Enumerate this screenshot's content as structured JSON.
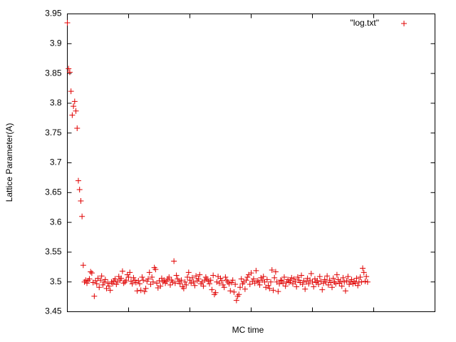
{
  "chart_data": {
    "type": "scatter",
    "x_label": "MC time",
    "y_label": "Lattice Parameter(A)",
    "xlim": [
      0,
      300
    ],
    "xticks": [
      0,
      50,
      100,
      150,
      200,
      250,
      300
    ],
    "ylim": [
      3.45,
      3.95
    ],
    "yticks": [
      3.45,
      3.5,
      3.55,
      3.6,
      3.65,
      3.7,
      3.75,
      3.8,
      3.85,
      3.9,
      3.95
    ],
    "legend": "top-right",
    "series": [
      {
        "name": "\"log.txt\"",
        "color": "#e00000",
        "values": [
          3.935,
          3.858,
          3.852,
          3.82,
          3.78,
          3.795,
          3.803,
          3.787,
          3.758,
          3.67,
          3.655,
          3.636,
          3.61,
          3.528,
          3.5,
          3.503,
          3.498,
          3.502,
          3.505,
          3.517,
          3.515,
          3.499,
          3.476,
          3.502,
          3.497,
          3.506,
          3.491,
          3.503,
          3.51,
          3.495,
          3.5,
          3.504,
          3.489,
          3.498,
          3.493,
          3.486,
          3.5,
          3.497,
          3.502,
          3.505,
          3.496,
          3.5,
          3.509,
          3.503,
          3.506,
          3.518,
          3.498,
          3.5,
          3.503,
          3.512,
          3.508,
          3.516,
          3.501,
          3.497,
          3.507,
          3.503,
          3.499,
          3.485,
          3.502,
          3.497,
          3.486,
          3.508,
          3.503,
          3.484,
          3.489,
          3.501,
          3.505,
          3.516,
          3.496,
          3.508,
          3.5,
          3.524,
          3.521,
          3.498,
          3.49,
          3.502,
          3.493,
          3.506,
          3.5,
          3.503,
          3.498,
          3.501,
          3.505,
          3.508,
          3.495,
          3.503,
          3.5,
          3.535,
          3.498,
          3.511,
          3.505,
          3.501,
          3.497,
          3.503,
          3.492,
          3.489,
          3.5,
          3.495,
          3.508,
          3.516,
          3.503,
          3.498,
          3.507,
          3.5,
          3.494,
          3.51,
          3.502,
          3.505,
          3.512,
          3.497,
          3.5,
          3.493,
          3.503,
          3.508,
          3.505,
          3.501,
          3.497,
          3.503,
          3.487,
          3.511,
          3.479,
          3.482,
          3.5,
          3.509,
          3.498,
          3.506,
          3.502,
          3.495,
          3.491,
          3.508,
          3.503,
          3.5,
          3.497,
          3.485,
          3.499,
          3.503,
          3.483,
          3.496,
          3.469,
          3.476,
          3.479,
          3.491,
          3.505,
          3.497,
          3.5,
          3.488,
          3.503,
          3.508,
          3.512,
          3.496,
          3.515,
          3.501,
          3.505,
          3.498,
          3.519,
          3.502,
          3.5,
          3.495,
          3.507,
          3.503,
          3.509,
          3.5,
          3.491,
          3.504,
          3.494,
          3.489,
          3.5,
          3.52,
          3.486,
          3.507,
          3.517,
          3.5,
          3.484,
          3.497,
          3.503,
          3.502,
          3.498,
          3.508,
          3.493,
          3.5,
          3.504,
          3.499,
          3.502,
          3.507,
          3.497,
          3.505,
          3.5,
          3.492,
          3.508,
          3.503,
          3.499,
          3.511,
          3.496,
          3.502,
          3.488,
          3.5,
          3.506,
          3.497,
          3.503,
          3.514,
          3.5,
          3.492,
          3.505,
          3.499,
          3.502,
          3.496,
          3.509,
          3.501,
          3.487,
          3.498,
          3.504,
          3.5,
          3.51,
          3.495,
          3.503,
          3.499,
          3.491,
          3.506,
          3.5,
          3.497,
          3.512,
          3.504,
          3.498,
          3.501,
          3.493,
          3.507,
          3.5,
          3.485,
          3.502,
          3.509,
          3.496,
          3.5,
          3.504,
          3.497,
          3.501,
          3.498,
          3.506,
          3.494,
          3.5,
          3.508,
          3.5,
          3.523,
          3.516,
          3.501,
          3.509,
          3.5
        ]
      }
    ]
  }
}
